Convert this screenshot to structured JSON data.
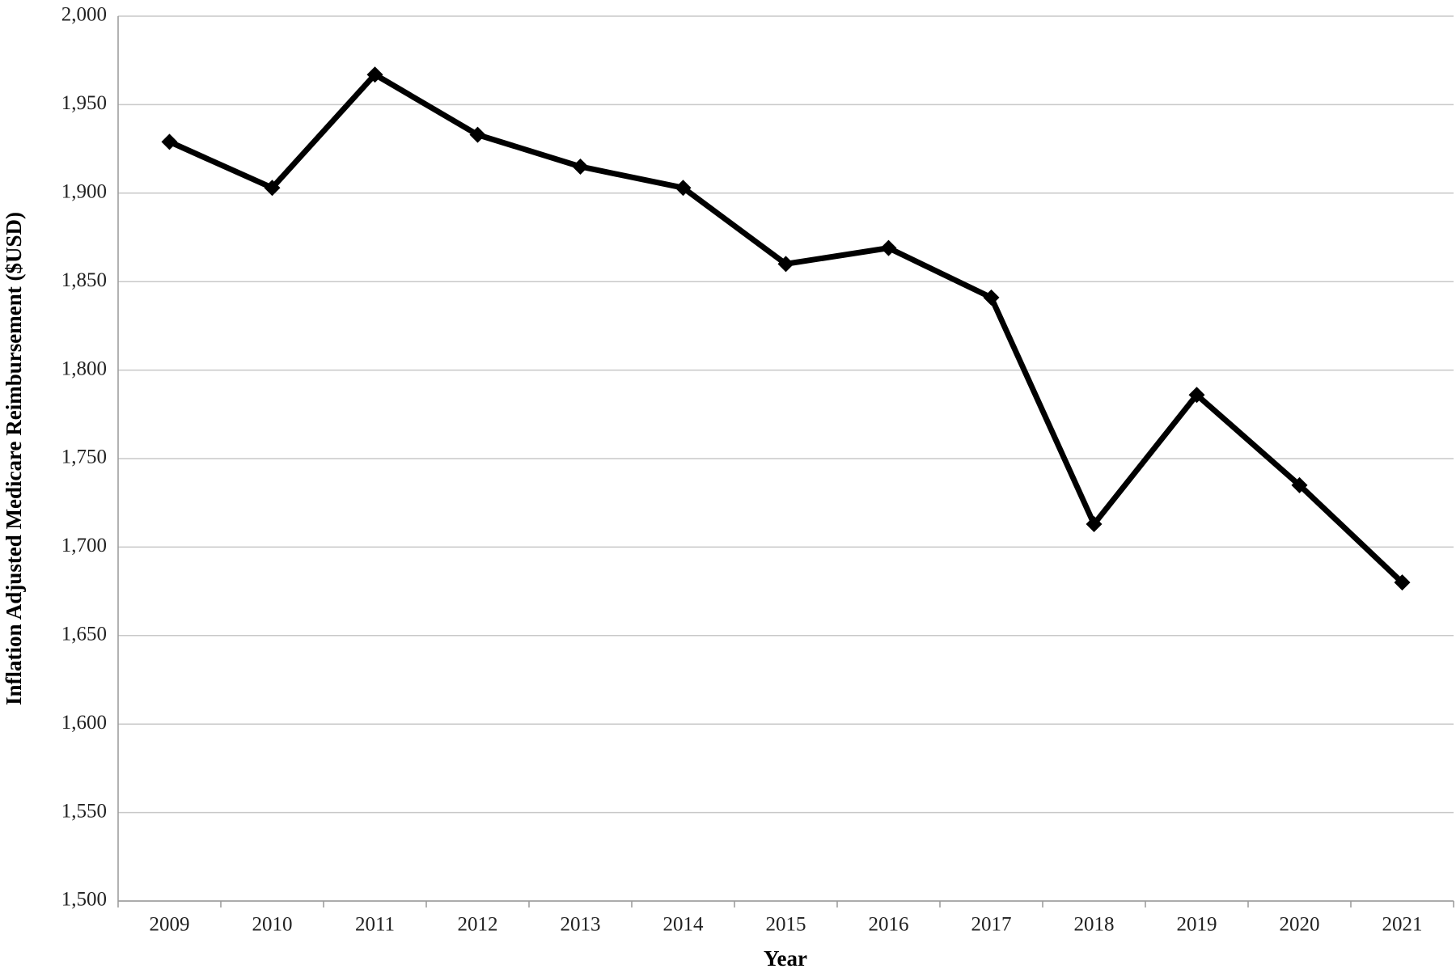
{
  "chart_data": {
    "type": "line",
    "x_label": "Year",
    "y_label": "Inflation Adjusted Medicare Reimbursement ($USD)",
    "categories": [
      "2009",
      "2010",
      "2011",
      "2012",
      "2013",
      "2014",
      "2015",
      "2016",
      "2017",
      "2018",
      "2019",
      "2020",
      "2021"
    ],
    "values": [
      1929,
      1903,
      1967,
      1933,
      1915,
      1903,
      1860,
      1869,
      1841,
      1713,
      1786,
      1735,
      1680
    ],
    "color": "#000000",
    "marker": "diamond",
    "ylim": [
      1500,
      2000
    ],
    "yticks": [
      {
        "value": 1500,
        "label": "1,500"
      },
      {
        "value": 1550,
        "label": "1,550"
      },
      {
        "value": 1600,
        "label": "1,600"
      },
      {
        "value": 1650,
        "label": "1,650"
      },
      {
        "value": 1700,
        "label": "1,700"
      },
      {
        "value": 1750,
        "label": "1,750"
      },
      {
        "value": 1800,
        "label": "1,800"
      },
      {
        "value": 1850,
        "label": "1,850"
      },
      {
        "value": 1900,
        "label": "1,900"
      },
      {
        "value": 1950,
        "label": "1,950"
      },
      {
        "value": 2000,
        "label": "2,000"
      }
    ],
    "grid": true
  }
}
